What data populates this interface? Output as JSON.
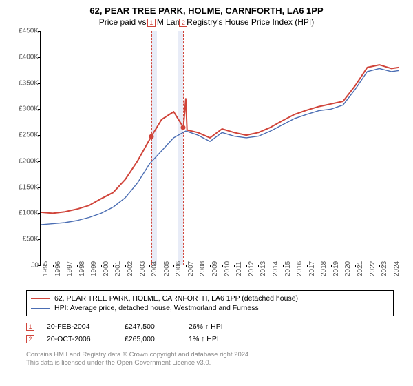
{
  "title": "62, PEAR TREE PARK, HOLME, CARNFORTH, LA6 1PP",
  "subtitle": "Price paid vs. HM Land Registry's House Price Index (HPI)",
  "chart": {
    "type": "line",
    "ylim": [
      0,
      450000
    ],
    "ytick_step": 50000,
    "yticks_labels": [
      "£0",
      "£50K",
      "£100K",
      "£150K",
      "£200K",
      "£250K",
      "£300K",
      "£350K",
      "£400K",
      "£450K"
    ],
    "xlim": [
      1995,
      2024.7
    ],
    "xticks": [
      1995,
      1996,
      1997,
      1998,
      1999,
      2000,
      2001,
      2002,
      2003,
      2004,
      2005,
      2006,
      2007,
      2008,
      2009,
      2010,
      2011,
      2012,
      2013,
      2014,
      2015,
      2016,
      2017,
      2018,
      2019,
      2020,
      2021,
      2022,
      2023,
      2024
    ],
    "background_color": "#ffffff",
    "shade_color": "#e8ecf7",
    "dash_color": "#d0443a",
    "series": [
      {
        "id": "prop",
        "label": "62, PEAR TREE PARK, HOLME, CARNFORTH, LA6 1PP (detached house)",
        "color": "#d0443a",
        "line_width": 2,
        "values": [
          [
            1995,
            102000
          ],
          [
            1996,
            100000
          ],
          [
            1997,
            103000
          ],
          [
            1998,
            108000
          ],
          [
            1999,
            115000
          ],
          [
            2000,
            128000
          ],
          [
            2001,
            140000
          ],
          [
            2002,
            165000
          ],
          [
            2003,
            200000
          ],
          [
            2004.15,
            247500
          ],
          [
            2005,
            280000
          ],
          [
            2006,
            295000
          ],
          [
            2006.8,
            265000
          ],
          [
            2007,
            320000
          ],
          [
            2007.1,
            260000
          ],
          [
            2008,
            255000
          ],
          [
            2009,
            245000
          ],
          [
            2010,
            262000
          ],
          [
            2011,
            255000
          ],
          [
            2012,
            250000
          ],
          [
            2013,
            255000
          ],
          [
            2014,
            265000
          ],
          [
            2015,
            278000
          ],
          [
            2016,
            290000
          ],
          [
            2017,
            298000
          ],
          [
            2018,
            305000
          ],
          [
            2019,
            310000
          ],
          [
            2020,
            315000
          ],
          [
            2021,
            345000
          ],
          [
            2022,
            380000
          ],
          [
            2023,
            385000
          ],
          [
            2024,
            378000
          ],
          [
            2024.6,
            380000
          ]
        ]
      },
      {
        "id": "hpi",
        "label": "HPI: Average price, detached house, Westmorland and Furness",
        "color": "#4a6db3",
        "line_width": 1.4,
        "values": [
          [
            1995,
            78000
          ],
          [
            1996,
            80000
          ],
          [
            1997,
            82000
          ],
          [
            1998,
            86000
          ],
          [
            1999,
            92000
          ],
          [
            2000,
            100000
          ],
          [
            2001,
            112000
          ],
          [
            2002,
            130000
          ],
          [
            2003,
            158000
          ],
          [
            2004,
            195000
          ],
          [
            2005,
            220000
          ],
          [
            2006,
            245000
          ],
          [
            2007,
            258000
          ],
          [
            2008,
            250000
          ],
          [
            2009,
            238000
          ],
          [
            2010,
            255000
          ],
          [
            2011,
            248000
          ],
          [
            2012,
            245000
          ],
          [
            2013,
            248000
          ],
          [
            2014,
            258000
          ],
          [
            2015,
            270000
          ],
          [
            2016,
            282000
          ],
          [
            2017,
            290000
          ],
          [
            2018,
            297000
          ],
          [
            2019,
            300000
          ],
          [
            2020,
            308000
          ],
          [
            2021,
            338000
          ],
          [
            2022,
            372000
          ],
          [
            2023,
            378000
          ],
          [
            2024,
            372000
          ],
          [
            2024.6,
            374000
          ]
        ]
      }
    ],
    "sales": [
      {
        "num": "1",
        "date_x": 2004.15,
        "price_y": 247500
      },
      {
        "num": "2",
        "date_x": 2006.8,
        "price_y": 265000
      }
    ],
    "shades": [
      {
        "from": 2004.15,
        "to": 2004.6
      },
      {
        "from": 2006.35,
        "to": 2006.8
      }
    ]
  },
  "sales_table": [
    {
      "num": "1",
      "date": "20-FEB-2004",
      "price": "£247,500",
      "pct": "26%",
      "vs": "HPI"
    },
    {
      "num": "2",
      "date": "20-OCT-2006",
      "price": "£265,000",
      "pct": "1%",
      "vs": "HPI"
    }
  ],
  "footer_line1": "Contains HM Land Registry data © Crown copyright and database right 2024.",
  "footer_line2": "This data is licensed under the Open Government Licence v3.0."
}
